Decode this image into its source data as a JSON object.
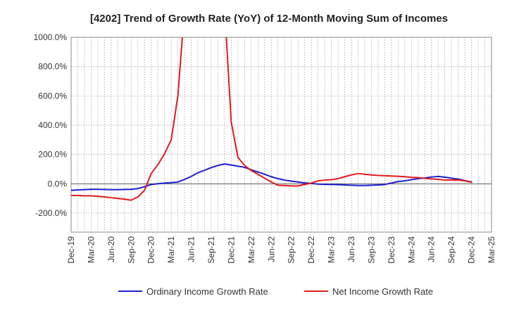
{
  "chart_data": {
    "type": "line",
    "title": "[4202]  Trend of Growth Rate (YoY) of 12-Month Moving Sum of Incomes",
    "xlabel": "",
    "ylabel": "",
    "x": [
      "Dec-19",
      "Jan-20",
      "Feb-20",
      "Mar-20",
      "Apr-20",
      "May-20",
      "Jun-20",
      "Jul-20",
      "Aug-20",
      "Sep-20",
      "Oct-20",
      "Nov-20",
      "Dec-20",
      "Jan-21",
      "Feb-21",
      "Mar-21",
      "Apr-21",
      "May-21",
      "Jun-21",
      "Jul-21",
      "Aug-21",
      "Sep-21",
      "Oct-21",
      "Nov-21",
      "Dec-21",
      "Jan-22",
      "Feb-22",
      "Mar-22",
      "Apr-22",
      "May-22",
      "Jun-22",
      "Jul-22",
      "Aug-22",
      "Sep-22",
      "Oct-22",
      "Nov-22",
      "Dec-22",
      "Jan-23",
      "Feb-23",
      "Mar-23",
      "Apr-23",
      "May-23",
      "Jun-23",
      "Jul-23",
      "Aug-23",
      "Sep-23",
      "Oct-23",
      "Nov-23",
      "Dec-23",
      "Jan-24",
      "Feb-24",
      "Mar-24",
      "Apr-24",
      "May-24",
      "Jun-24",
      "Jul-24",
      "Aug-24",
      "Sep-24",
      "Oct-24",
      "Nov-24",
      "Dec-24",
      "Jan-25",
      "Feb-25",
      "Mar-25"
    ],
    "x_tick_labels": [
      "Dec-19",
      "Mar-20",
      "Jun-20",
      "Sep-20",
      "Dec-20",
      "Mar-21",
      "Jun-21",
      "Sep-21",
      "Dec-21",
      "Mar-22",
      "Jun-22",
      "Sep-22",
      "Dec-22",
      "Mar-23",
      "Jun-23",
      "Sep-23",
      "Dec-23",
      "Mar-24",
      "Jun-24",
      "Sep-24",
      "Dec-24",
      "Mar-25"
    ],
    "y_ticks": [
      -200,
      0,
      200,
      400,
      600,
      800,
      1000
    ],
    "y_tick_labels": [
      "-200.0%",
      "0.0%",
      "200.0%",
      "400.0%",
      "600.0%",
      "800.0%",
      "1000.0%"
    ],
    "ylim": [
      -330,
      1000
    ],
    "grid": true,
    "legend_position": "bottom",
    "series": [
      {
        "name": "Ordinary Income Growth Rate",
        "color": "#1f1fcf",
        "values": [
          -45,
          -42,
          -40,
          -38,
          -38,
          -39,
          -40,
          -40,
          -39,
          -38,
          -33,
          -20,
          -5,
          0,
          5,
          8,
          12,
          30,
          50,
          75,
          92,
          110,
          125,
          135,
          128,
          120,
          112,
          95,
          80,
          65,
          48,
          35,
          25,
          18,
          12,
          6,
          2,
          -2,
          -4,
          -5,
          -6,
          -8,
          -10,
          -12,
          -12,
          -10,
          -8,
          -5,
          5,
          15,
          20,
          28,
          35,
          40,
          46,
          50,
          45,
          38,
          32,
          22,
          12,
          null,
          null,
          null
        ]
      },
      {
        "name": "Net Income Growth Rate",
        "color": "#e31a1c",
        "values": [
          -80,
          -80,
          -82,
          -82,
          -86,
          -90,
          -95,
          -100,
          -105,
          -112,
          -90,
          -45,
          70,
          130,
          205,
          300,
          600,
          1200,
          null,
          null,
          null,
          null,
          null,
          1200,
          420,
          180,
          125,
          90,
          65,
          38,
          12,
          -10,
          -12,
          -15,
          -15,
          -5,
          5,
          20,
          25,
          28,
          35,
          48,
          60,
          70,
          65,
          60,
          57,
          55,
          53,
          51,
          48,
          44,
          42,
          37,
          33,
          30,
          25,
          26,
          25,
          20,
          10,
          null,
          null,
          null
        ]
      }
    ]
  }
}
